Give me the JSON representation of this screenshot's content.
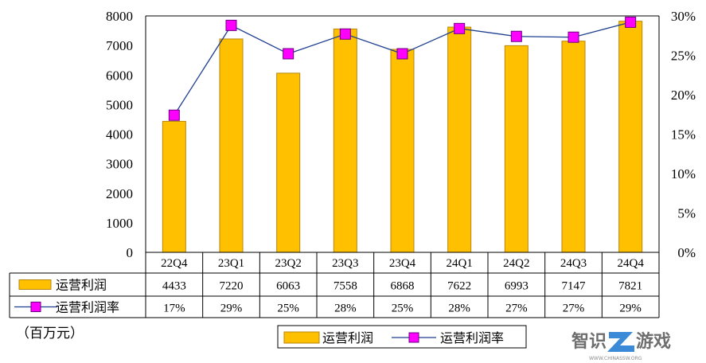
{
  "chart_data": {
    "type": "bar",
    "categories": [
      "22Q4",
      "23Q1",
      "23Q2",
      "23Q3",
      "23Q4",
      "24Q1",
      "24Q2",
      "24Q3",
      "24Q4"
    ],
    "series": [
      {
        "name": "运营利润",
        "kind": "bar",
        "axis": "left",
        "values": [
          4433,
          7220,
          6063,
          7558,
          6868,
          7622,
          6993,
          7147,
          7821
        ],
        "labels": [
          "4433",
          "7220",
          "6063",
          "7558",
          "6868",
          "7622",
          "6993",
          "7147",
          "7821"
        ]
      },
      {
        "name": "运营利润率",
        "kind": "line",
        "axis": "right",
        "values": [
          17.4,
          28.8,
          25.2,
          27.7,
          25.2,
          28.4,
          27.4,
          27.3,
          29.2
        ],
        "labels": [
          "17%",
          "29%",
          "25%",
          "28%",
          "25%",
          "28%",
          "27%",
          "27%",
          "29%"
        ]
      }
    ],
    "ylim": [
      0,
      8000
    ],
    "y_ticks": [
      "0",
      "1000",
      "2000",
      "3000",
      "4000",
      "5000",
      "6000",
      "7000",
      "8000"
    ],
    "y2lim": [
      0,
      30
    ],
    "y2_ticks": [
      "0%",
      "5%",
      "10%",
      "15%",
      "20%",
      "25%",
      "30%"
    ],
    "unit_label": "（百万元）",
    "legend": [
      "运营利润",
      "运营利润率"
    ],
    "legend_position": "bottom",
    "grid": false,
    "data_table": true,
    "colors": {
      "bar_fill": "#FFC000",
      "bar_stroke": "#B8860B",
      "line": "#1F3F8F",
      "marker_fill": "#FF00FF",
      "marker_stroke": "#6A0080"
    }
  },
  "watermark": {
    "text": "智识",
    "text2": "游戏",
    "sub": "WWW.CHINASSW.ORG"
  }
}
